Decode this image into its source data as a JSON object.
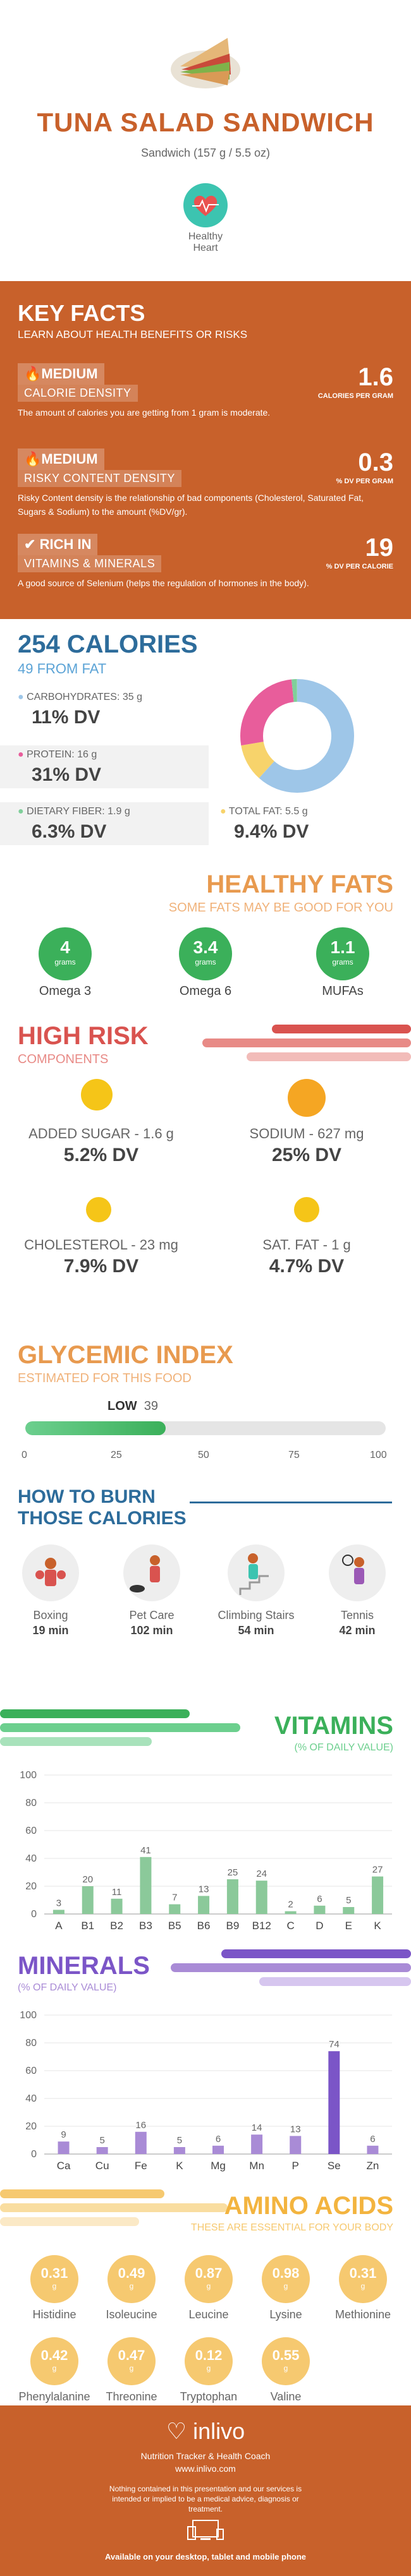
{
  "header": {
    "title": "TUNA SALAD SANDWICH",
    "serving": "Sandwich (157 g / 5.5 oz)",
    "badge_label": "Healthy Heart"
  },
  "key_facts": {
    "title": "KEY FACTS",
    "subtitle": "LEARN ABOUT HEALTH BENEFITS OR RISKS",
    "rows": [
      {
        "level": "MEDIUM",
        "name": "CALORIE DENSITY",
        "value": "1.6",
        "unit": "CALORIES PER GRAM",
        "desc": "The amount of calories you are getting from 1 gram is moderate."
      },
      {
        "level": "MEDIUM",
        "name": "RISKY CONTENT DENSITY",
        "value": "0.3",
        "unit": "% DV PER GRAM",
        "desc": "Risky Content density is the relationship of bad components (Cholesterol, Saturated Fat, Sugars & Sodium) to the amount (%DV/gr)."
      },
      {
        "level": "RICH IN",
        "name": "VITAMINS & MINERALS",
        "value": "19",
        "unit": "% DV PER CALORIE",
        "desc": "A good source of Selenium (helps the regulation of hormones in the body)."
      }
    ]
  },
  "calories": {
    "title": "254 CALORIES",
    "from_fat": "49 FROM FAT",
    "carbs_label": "CARBOHYDRATES: 35 g",
    "carbs_dv": "11% DV",
    "protein_label": "PROTEIN: 16 g",
    "protein_dv": "31% DV",
    "fiber_label": "DIETARY FIBER: 1.9 g",
    "fiber_dv": "6.3% DV",
    "fat_label": "TOTAL FAT: 5.5 g",
    "fat_dv": "9.4% DV",
    "colors": {
      "carbs": "#9ec6e8",
      "protein": "#e85d9b",
      "fat": "#f7d36b",
      "fiber": "#7fcf9a"
    }
  },
  "healthy_fats": {
    "title": "HEALTHY FATS",
    "subtitle": "SOME FATS MAY BE GOOD FOR YOU",
    "items": [
      {
        "value": "4",
        "unit": "grams",
        "label": "Omega 3"
      },
      {
        "value": "3.4",
        "unit": "grams",
        "label": "Omega 6"
      },
      {
        "value": "1.1",
        "unit": "grams",
        "label": "MUFAs"
      }
    ]
  },
  "high_risk": {
    "title": "HIGH RISK",
    "subtitle": "COMPONENTS",
    "items": [
      {
        "label": "ADDED SUGAR - 1.6 g",
        "dv": "5.2% DV"
      },
      {
        "label": "SODIUM - 627 mg",
        "dv": "25% DV"
      },
      {
        "label": "CHOLESTEROL - 23 mg",
        "dv": "7.9% DV"
      },
      {
        "label": "SAT. FAT - 1 g",
        "dv": "4.7% DV"
      }
    ]
  },
  "glycemic": {
    "title": "GLYCEMIC INDEX",
    "subtitle": "ESTIMATED FOR THIS FOOD",
    "level": "LOW",
    "value": "39",
    "value_num": 39,
    "ticks": [
      "0",
      "25",
      "50",
      "75",
      "100"
    ]
  },
  "burn": {
    "title1": "HOW TO BURN",
    "title2": "THOSE CALORIES",
    "items": [
      {
        "name": "Boxing",
        "min": "19 min"
      },
      {
        "name": "Pet Care",
        "min": "102 min"
      },
      {
        "name": "Climbing Stairs",
        "min": "54 min"
      },
      {
        "name": "Tennis",
        "min": "42 min"
      }
    ]
  },
  "vitamins": {
    "title": "VITAMINS",
    "subtitle": "(% OF DAILY VALUE)"
  },
  "minerals": {
    "title": "MINERALS",
    "subtitle": "(% OF DAILY VALUE)"
  },
  "chart_data": [
    {
      "type": "bar",
      "title": "VITAMINS",
      "categories": [
        "A",
        "B1",
        "B2",
        "B3",
        "B5",
        "B6",
        "B9",
        "B12",
        "C",
        "D",
        "E",
        "K"
      ],
      "values": [
        3,
        20,
        11,
        41,
        7,
        13,
        25,
        24,
        2,
        6,
        5,
        27
      ],
      "ylim": [
        0,
        100
      ],
      "yticks": [
        "0",
        "20",
        "40",
        "60",
        "80",
        "100"
      ],
      "color": "#8bc99a"
    },
    {
      "type": "bar",
      "title": "MINERALS",
      "categories": [
        "Ca",
        "Cu",
        "Fe",
        "K",
        "Mg",
        "Mn",
        "P",
        "Se",
        "Zn"
      ],
      "values": [
        9,
        5,
        16,
        5,
        6,
        14,
        13,
        74,
        6
      ],
      "ylim": [
        0,
        100
      ],
      "yticks": [
        "0",
        "20",
        "40",
        "60",
        "80",
        "100"
      ],
      "color": "#a98bd6",
      "highlight_color": "#7b55c7"
    }
  ],
  "amino": {
    "title": "AMINO ACIDS",
    "subtitle": "THESE ARE ESSENTIAL FOR YOUR BODY",
    "items": [
      {
        "value": "0.31",
        "unit": "g",
        "label": "Histidine"
      },
      {
        "value": "0.49",
        "unit": "g",
        "label": "Isoleucine"
      },
      {
        "value": "0.87",
        "unit": "g",
        "label": "Leucine"
      },
      {
        "value": "0.98",
        "unit": "g",
        "label": "Lysine"
      },
      {
        "value": "0.31",
        "unit": "g",
        "label": "Methionine"
      },
      {
        "value": "0.42",
        "unit": "g",
        "label": "Phenylalanine"
      },
      {
        "value": "0.47",
        "unit": "g",
        "label": "Threonine"
      },
      {
        "value": "0.12",
        "unit": "g",
        "label": "Tryptophan"
      },
      {
        "value": "0.55",
        "unit": "g",
        "label": "Valine"
      }
    ]
  },
  "footer": {
    "brand": "inlivo",
    "tagline": "Nutrition Tracker & Health Coach",
    "url": "www.inlivo.com",
    "disclaimer": "Nothing contained in this presentation and our services is intended or implied to be a medical advice, diagnosis or treatment.",
    "available": "Available on your desktop, tablet and mobile phone"
  }
}
